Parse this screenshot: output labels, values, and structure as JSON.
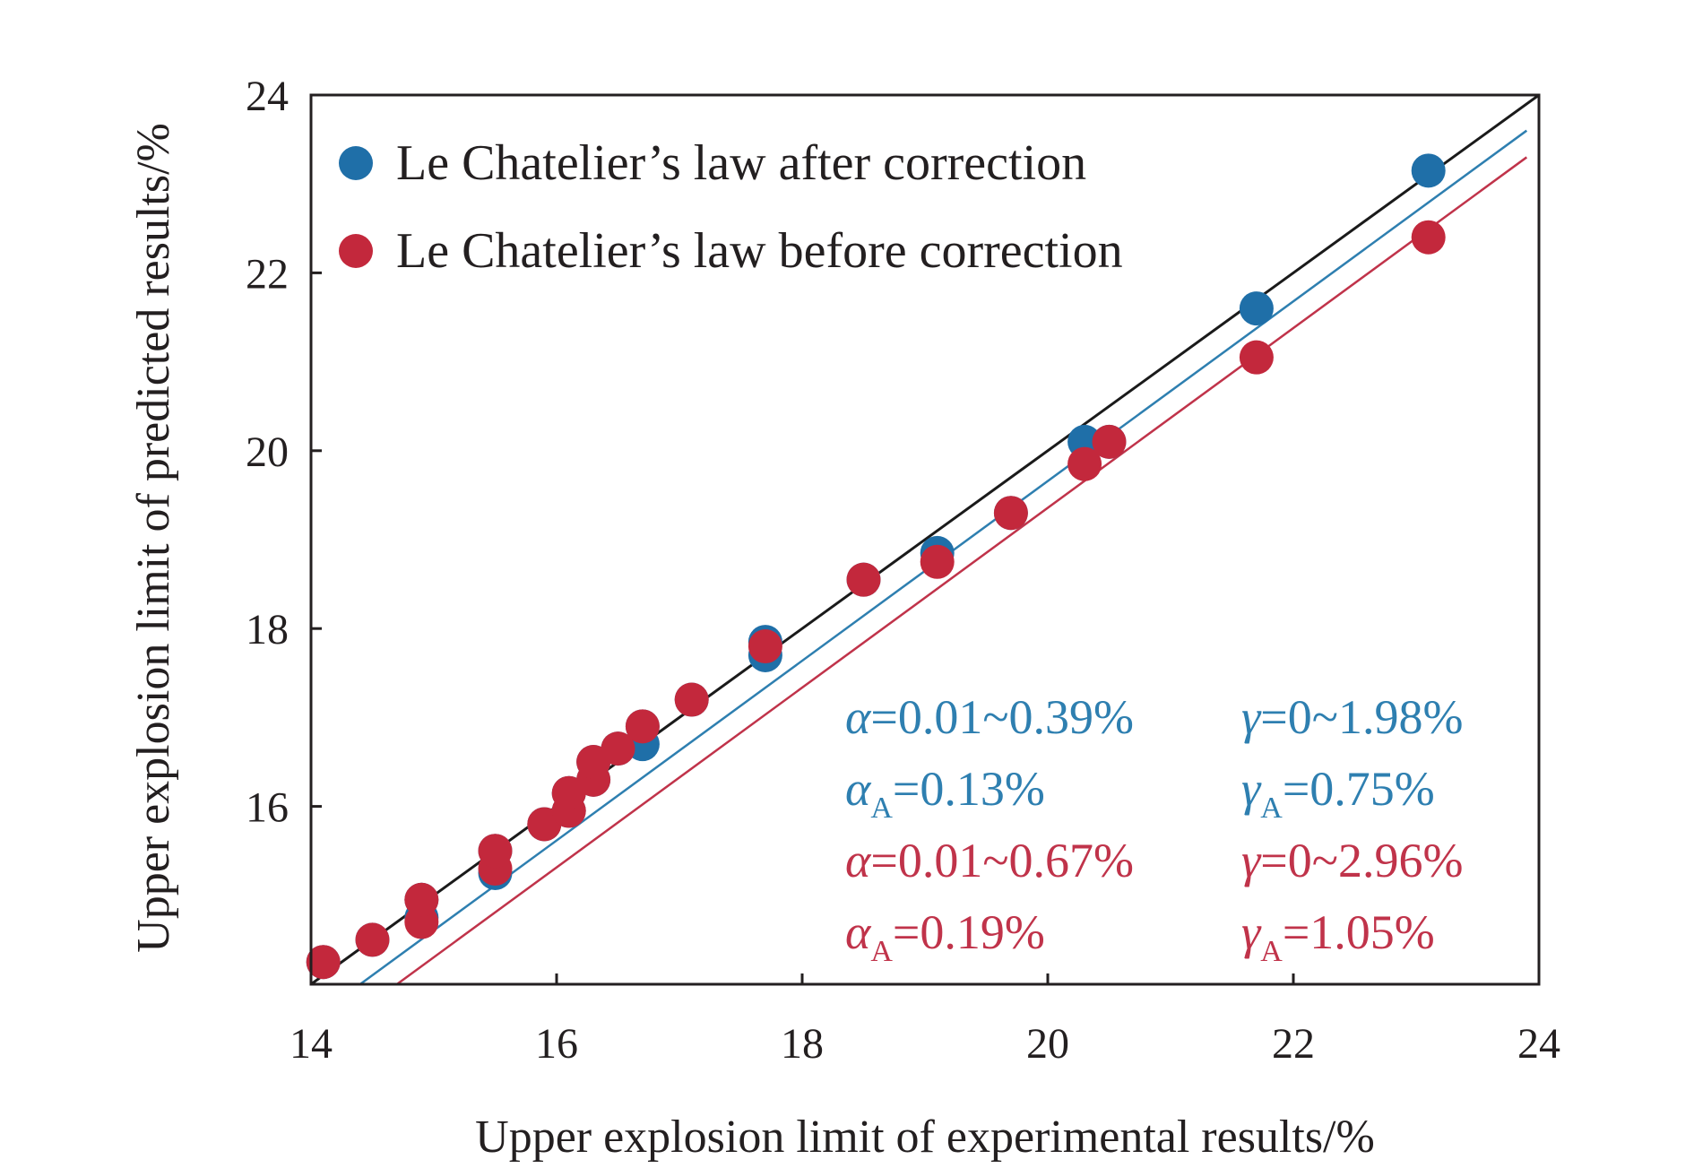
{
  "chart_data": {
    "type": "scatter",
    "title": "",
    "xlabel": "Upper explosion limit of experimental results/%",
    "ylabel": "Upper explosion limit of predicted results/%",
    "xlim": [
      14,
      24
    ],
    "ylim": [
      14,
      24
    ],
    "xticks": [
      "14",
      "16",
      "18",
      "20",
      "22",
      "24"
    ],
    "yticks": [
      "16",
      "18",
      "20",
      "22",
      "24"
    ],
    "grid": false,
    "legend_position": "top-left",
    "reference_lines": [
      {
        "color": "#1a1a1a",
        "x": [
          14,
          24
        ],
        "y": [
          14,
          24
        ]
      },
      {
        "color": "#2e7fb0",
        "x": [
          14.4,
          23.9
        ],
        "y": [
          14,
          23.6
        ]
      },
      {
        "color": "#c0334a",
        "x": [
          14.7,
          23.9
        ],
        "y": [
          14,
          23.3
        ]
      }
    ],
    "series": [
      {
        "name": "Le Chatelier’s law after correction",
        "color": "#1f6fa8",
        "points": [
          [
            14.1,
            14.25
          ],
          [
            14.5,
            14.5
          ],
          [
            14.9,
            14.75
          ],
          [
            14.9,
            14.95
          ],
          [
            15.5,
            15.25
          ],
          [
            15.5,
            15.5
          ],
          [
            15.9,
            15.8
          ],
          [
            16.1,
            15.95
          ],
          [
            16.1,
            16.15
          ],
          [
            16.3,
            16.3
          ],
          [
            16.3,
            16.5
          ],
          [
            16.5,
            16.65
          ],
          [
            16.7,
            16.7
          ],
          [
            16.7,
            16.9
          ],
          [
            17.1,
            17.2
          ],
          [
            17.7,
            17.7
          ],
          [
            17.7,
            17.85
          ],
          [
            18.5,
            18.55
          ],
          [
            19.1,
            18.85
          ],
          [
            19.7,
            19.3
          ],
          [
            20.3,
            20.1
          ],
          [
            20.5,
            20.1
          ],
          [
            21.7,
            21.6
          ],
          [
            23.1,
            23.15
          ]
        ]
      },
      {
        "name": "Le Chatelier’s law before correction",
        "color": "#c3283c",
        "points": [
          [
            14.1,
            14.25
          ],
          [
            14.5,
            14.5
          ],
          [
            14.9,
            14.7
          ],
          [
            14.9,
            14.95
          ],
          [
            15.5,
            15.3
          ],
          [
            15.5,
            15.5
          ],
          [
            15.9,
            15.8
          ],
          [
            16.1,
            15.95
          ],
          [
            16.1,
            16.15
          ],
          [
            16.3,
            16.3
          ],
          [
            16.3,
            16.5
          ],
          [
            16.5,
            16.65
          ],
          [
            16.7,
            16.9
          ],
          [
            17.1,
            17.2
          ],
          [
            17.7,
            17.8
          ],
          [
            18.5,
            18.55
          ],
          [
            19.1,
            18.75
          ],
          [
            19.7,
            19.3
          ],
          [
            20.3,
            19.85
          ],
          [
            20.5,
            20.1
          ],
          [
            21.7,
            21.05
          ],
          [
            23.1,
            22.4
          ]
        ]
      }
    ],
    "annotations": [
      {
        "color": "#2e7fb0",
        "greek": "α",
        "sub": "",
        "value": "=0.01~0.39%"
      },
      {
        "color": "#2e7fb0",
        "greek": "γ",
        "sub": "",
        "value": "=0~1.98%"
      },
      {
        "color": "#2e7fb0",
        "greek": "α",
        "sub": "A",
        "value": "=0.13%"
      },
      {
        "color": "#2e7fb0",
        "greek": "γ",
        "sub": "A",
        "value": "=0.75%"
      },
      {
        "color": "#c0334a",
        "greek": "α",
        "sub": "",
        "value": "=0.01~0.67%"
      },
      {
        "color": "#c0334a",
        "greek": "γ",
        "sub": "",
        "value": "=0~2.96%"
      },
      {
        "color": "#c0334a",
        "greek": "α",
        "sub": "A",
        "value": "=0.19%"
      },
      {
        "color": "#c0334a",
        "greek": "γ",
        "sub": "A",
        "value": "=1.05%"
      }
    ]
  }
}
